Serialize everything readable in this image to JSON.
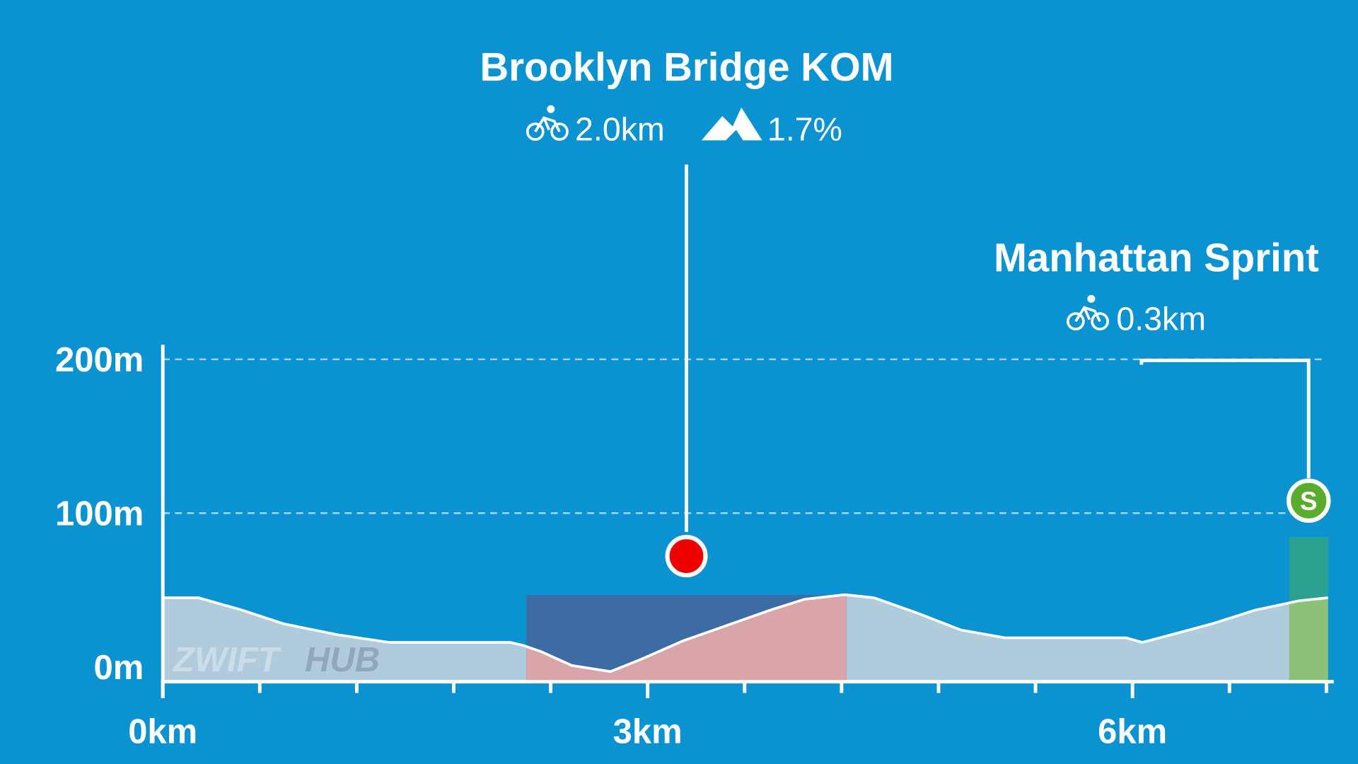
{
  "chart_data": {
    "type": "area",
    "x": [
      0,
      0.22,
      0.49,
      0.75,
      1.08,
      1.4,
      1.78,
      2.15,
      2.23,
      2.34,
      2.53,
      2.77,
      2.96,
      3.22,
      3.49,
      3.76,
      3.97,
      4.22,
      4.4,
      4.67,
      4.94,
      5.21,
      5.53,
      5.96,
      6.06,
      6.17,
      6.49,
      6.76,
      7.03,
      7.21
    ],
    "series": [
      {
        "color": "#b9cfdc",
        "values": [
          45,
          45,
          37,
          28,
          21,
          16,
          16,
          16,
          14,
          10,
          1,
          -3,
          5,
          17,
          27,
          37,
          44,
          47,
          45,
          35,
          24,
          19,
          19,
          19,
          16,
          19,
          28,
          37,
          43,
          45
        ]
      }
    ],
    "xlim": [
      0,
      7.24
    ],
    "ylim": [
      -8,
      208
    ],
    "xticks": [
      {
        "value": 0,
        "label": "0km"
      },
      {
        "value": 3,
        "label": "3km"
      },
      {
        "value": 6,
        "label": "6km"
      }
    ],
    "xminorticks": [
      0.6,
      1.2,
      1.8,
      2.4,
      3.6,
      4.2,
      4.8,
      5.4,
      6.6,
      7.2
    ],
    "yticks": [
      {
        "value": 0,
        "label": "0m"
      },
      {
        "value": 100,
        "label": "100m"
      },
      {
        "value": 200,
        "label": "200m"
      }
    ],
    "grid": true,
    "segments": [
      {
        "name": "Brooklyn Bridge KOM",
        "kind": "kom",
        "start": 2.25,
        "end": 4.23,
        "marker_km": 3.24,
        "length_label": "2.0km",
        "grade_label": "1.7%",
        "color": "#3f6aa0",
        "fill": "#d9a5aa"
      },
      {
        "name": "Manhattan Sprint",
        "kind": "sprint",
        "start": 6.97,
        "end": 7.21,
        "marker_km": 7.09,
        "length_label": "0.3km",
        "badge": "S",
        "color": "#2ea38a",
        "fill": "#8cc17a"
      }
    ],
    "watermark": [
      "ZWIFT",
      "HUB"
    ]
  }
}
